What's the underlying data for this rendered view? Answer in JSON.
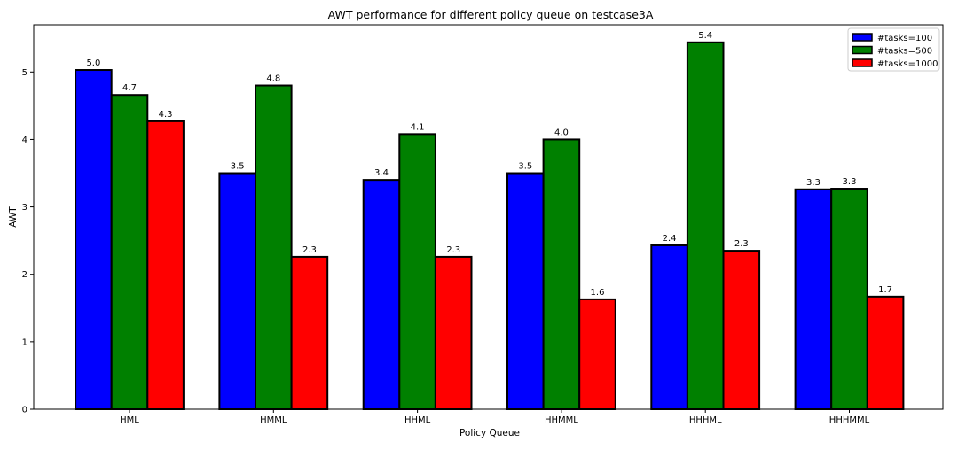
{
  "chart_data": {
    "type": "bar",
    "title": "AWT performance for different policy queue on testcase3A",
    "xlabel": "Policy Queue",
    "ylabel": "AWT",
    "categories": [
      "HML",
      "HMML",
      "HHML",
      "HHMML",
      "HHHML",
      "HHHMML"
    ],
    "series": [
      {
        "name": "#tasks=100",
        "color": "#0000ff",
        "values": [
          5.03,
          3.5,
          3.4,
          3.5,
          2.43,
          3.26
        ],
        "labels": [
          "5.0",
          "3.5",
          "3.4",
          "3.5",
          "2.4",
          "3.3"
        ]
      },
      {
        "name": "#tasks=500",
        "color": "#008000",
        "values": [
          4.66,
          4.8,
          4.08,
          4.0,
          5.44,
          3.27
        ],
        "labels": [
          "4.7",
          "4.8",
          "4.1",
          "4.0",
          "5.4",
          "3.3"
        ]
      },
      {
        "name": "#tasks=1000",
        "color": "#ff0000",
        "values": [
          4.27,
          2.26,
          2.26,
          1.63,
          2.35,
          1.67
        ],
        "labels": [
          "4.3",
          "2.3",
          "2.3",
          "1.6",
          "2.3",
          "1.7"
        ]
      }
    ],
    "y_ticks": [
      "0",
      "1",
      "2",
      "3",
      "4",
      "5"
    ],
    "ylim": [
      0,
      5.7
    ],
    "grid": false,
    "legend_position": "top-right",
    "bar_edge_color": "#000000"
  }
}
